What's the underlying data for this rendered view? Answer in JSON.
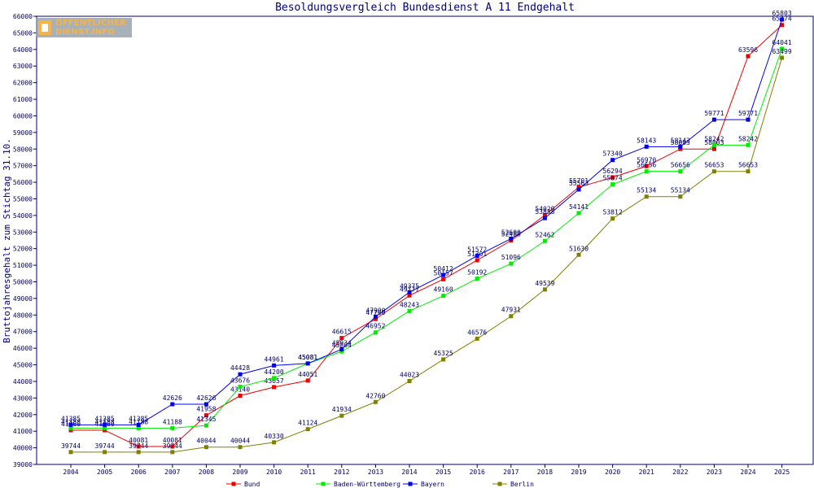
{
  "logo": {
    "line1": "ÖFFENTLICHER",
    "line2": "DIENST.INFO"
  },
  "chart_data": {
    "type": "line",
    "title": "Besoldungsvergleich Bundesdienst A 11 Endgehalt",
    "xlabel": "",
    "ylabel": "Bruttojahresgehalt zum Stichtag 31.10.",
    "ylim": [
      39000,
      66000
    ],
    "ytick_step": 1000,
    "grid": false,
    "legend": "bottom",
    "categories": [
      "2004",
      "2005",
      "2006",
      "2007",
      "2008",
      "2009",
      "2010",
      "2011",
      "2012",
      "2013",
      "2014",
      "2015",
      "2016",
      "2017",
      "2018",
      "2019",
      "2020",
      "2021",
      "2022",
      "2023",
      "2024",
      "2025"
    ],
    "series": [
      {
        "name": "Bund",
        "color": "#ee0000",
        "values": [
          41060,
          41060,
          40081,
          40081,
          41958,
          43140,
          43657,
          44051,
          46615,
          47760,
          49177,
          50157,
          51301,
          52488,
          54020,
          55701,
          56294,
          56970,
          58003,
          58003,
          63596,
          65474
        ]
      },
      {
        "name": "Baden-Württemberg",
        "color": "#00ee00",
        "values": [
          41188,
          41188,
          41188,
          41188,
          41345,
          43676,
          44200,
          45081,
          45804,
          46952,
          48243,
          49160,
          50192,
          51096,
          52462,
          54141,
          55874,
          56656,
          56656,
          58242,
          58242,
          64041
        ]
      },
      {
        "name": "Bayern",
        "color": "#0000ee",
        "values": [
          41385,
          41385,
          41385,
          42626,
          42626,
          44428,
          44961,
          45081,
          45934,
          47900,
          49375,
          50412,
          51572,
          52600,
          53838,
          55563,
          57340,
          58143,
          58143,
          59771,
          59771,
          65803
        ]
      },
      {
        "name": "Berlin",
        "color": "#808000",
        "values": [
          39744,
          39744,
          39744,
          39744,
          40044,
          40044,
          40330,
          41124,
          41934,
          42760,
          44023,
          45325,
          46576,
          47931,
          49539,
          51630,
          53812,
          55134,
          55134,
          56653,
          56653,
          63499
        ]
      }
    ]
  }
}
